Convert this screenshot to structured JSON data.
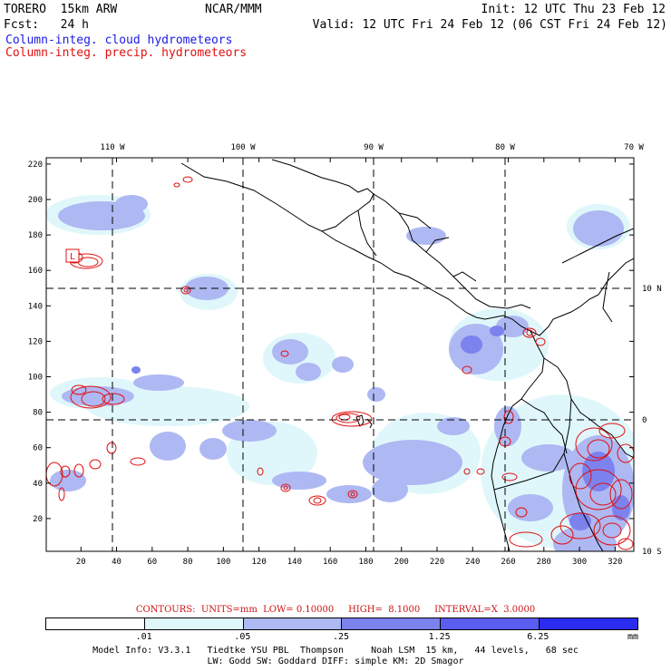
{
  "header": {
    "model": "TORERO  15km ARW",
    "org": "NCAR/MMM",
    "init": "Init: 12 UTC Thu 23 Feb 12",
    "fcst": "Fcst:   24 h",
    "valid": "Valid: 12 UTC Fri 24 Feb 12 (06 CST Fri 24 Feb 12)",
    "field_cloud": "Column-integ. cloud hydrometeors",
    "field_precip": "Column-integ. precip. hydrometeors"
  },
  "map": {
    "top_lon_labels": [
      "110 W",
      "100 W",
      "90 W",
      "80 W",
      "70 W"
    ],
    "right_lat_labels": [
      "10 N",
      "0",
      "10 S"
    ],
    "y_ticks": [
      "20",
      "40",
      "60",
      "80",
      "100",
      "120",
      "140",
      "160",
      "180",
      "200",
      "220"
    ],
    "x_ticks": [
      "20",
      "40",
      "60",
      "80",
      "100",
      "120",
      "140",
      "160",
      "180",
      "200",
      "220",
      "240",
      "260",
      "280",
      "300",
      "320"
    ],
    "low_marker": "L",
    "colors": {
      "land_border": "#000000",
      "grid": "#000000",
      "precip_contour": "#e01010"
    }
  },
  "contours": {
    "text": "CONTOURS:  UNITS=mm  LOW= 0.10000     HIGH=  8.1000     INTERVAL=X  3.0000"
  },
  "colorbar": {
    "colors": [
      "#ffffff",
      "#dff7fb",
      "#aeb8f2",
      "#7c82ee",
      "#5a5df0",
      "#2a2df0"
    ],
    "labels": [
      ".01",
      ".05",
      ".25",
      "1.25",
      "6.25"
    ],
    "unit": "mm"
  },
  "footer": {
    "line1": "Model Info: V3.3.1   Tiedtke YSU PBL  Thompson     Noah LSM  15 km,   44 levels,   68 sec",
    "line2": "LW: Godd SW: Goddard DIFF: simple KM: 2D Smagor"
  }
}
